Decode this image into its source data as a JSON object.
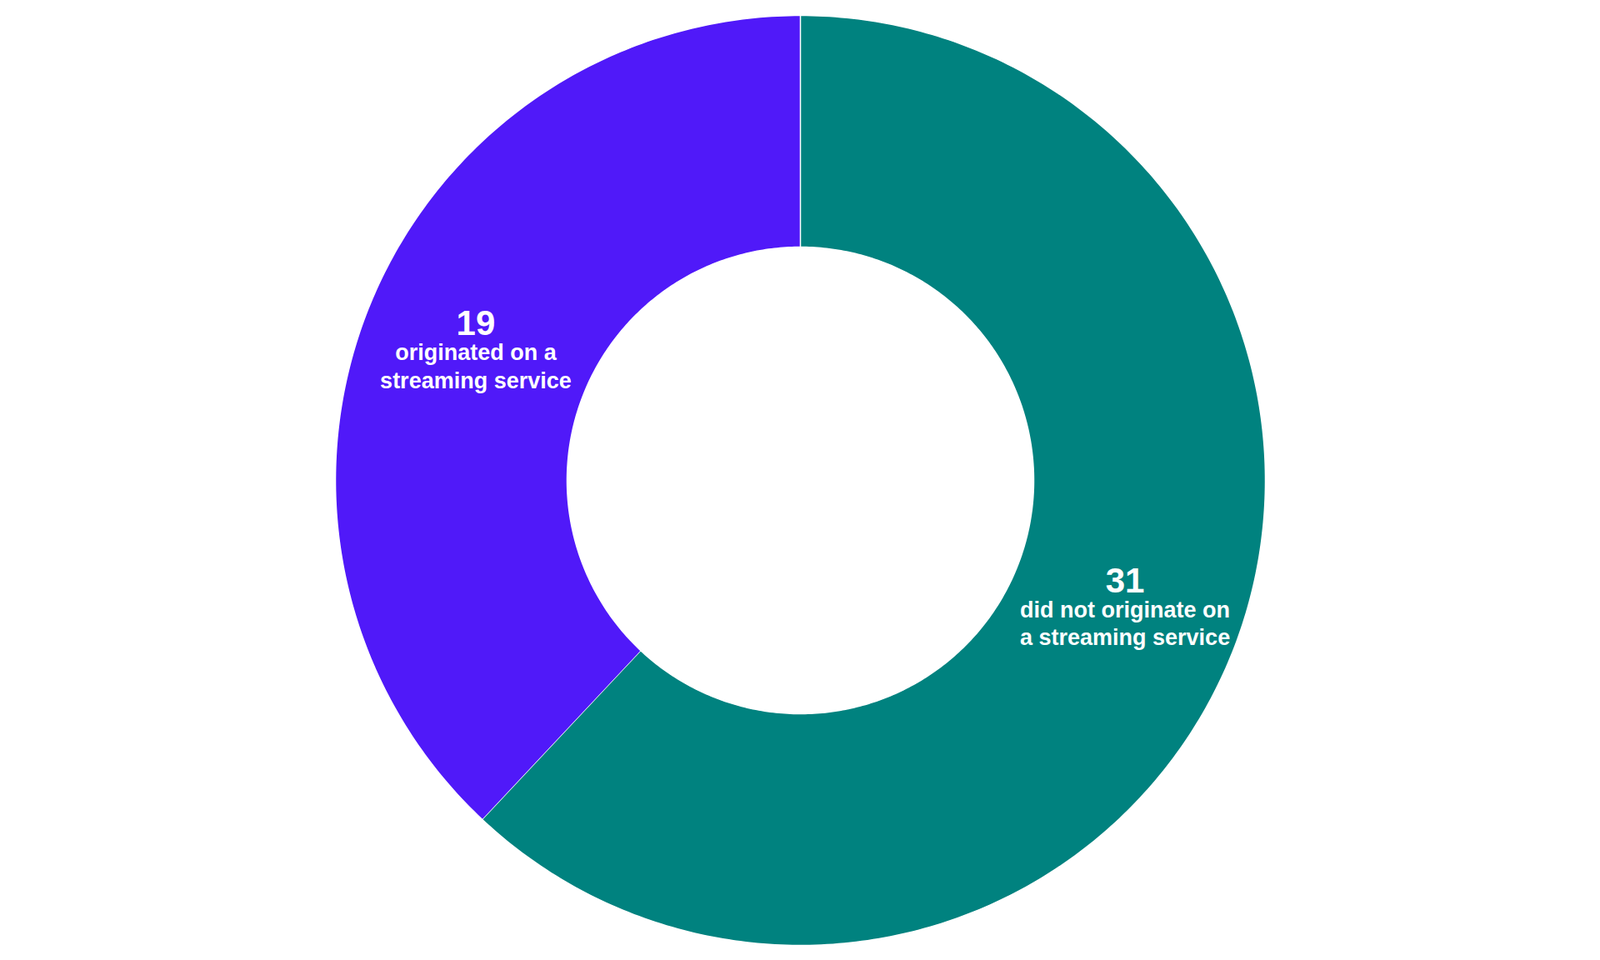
{
  "chart_data": {
    "type": "donut",
    "categories": [
      "did not originate on a streaming service",
      "originated on a streaming service"
    ],
    "values": [
      31,
      19
    ],
    "colors": [
      "#00827f",
      "#5019f9"
    ],
    "data_labels": true
  }
}
